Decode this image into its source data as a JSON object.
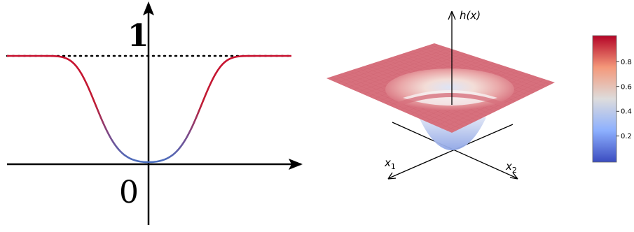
{
  "left_panel": {
    "label_one": "1",
    "label_zero": "0"
  },
  "right_panel": {
    "z_axis_label": "h(x)",
    "x1_axis_label": "x1",
    "x2_axis_label": "x2",
    "colorbar_ticks": [
      "0.2",
      "0.4",
      "0.6",
      "0.8"
    ]
  },
  "colors": {
    "curve_high": "#c8102e",
    "curve_low": "#4a6fc0",
    "surface_top": "#d7707d",
    "colormap": [
      "#3b4cc0",
      "#8db0fe",
      "#dddcdc",
      "#f4987a",
      "#b40426"
    ]
  }
}
